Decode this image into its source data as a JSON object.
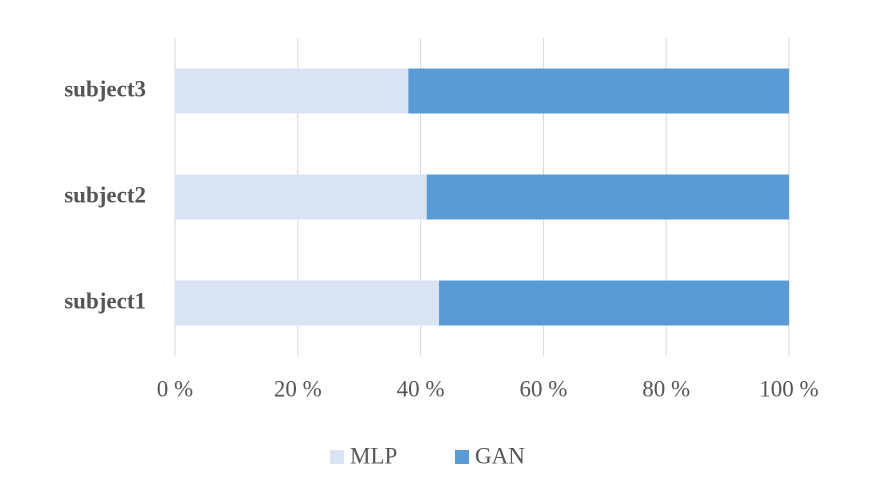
{
  "chart_data": {
    "type": "stacked_bar_horizontal",
    "categories": [
      "subject1",
      "subject2",
      "subject3"
    ],
    "series": [
      {
        "name": "MLP",
        "color": "#dae3f3",
        "values": [
          43,
          41,
          38
        ]
      },
      {
        "name": "GAN",
        "color": "#5b9bd5",
        "values": [
          57,
          59,
          62
        ]
      }
    ],
    "xlim": [
      0,
      100
    ],
    "xticks": [
      {
        "value": 0,
        "label": "0 %"
      },
      {
        "value": 20,
        "label": "20 %"
      },
      {
        "value": 40,
        "label": "40 %"
      },
      {
        "value": 60,
        "label": "60 %"
      },
      {
        "value": 80,
        "label": "80 %"
      },
      {
        "value": 100,
        "label": "100 %"
      }
    ],
    "grid": true,
    "legend": "bottom"
  }
}
